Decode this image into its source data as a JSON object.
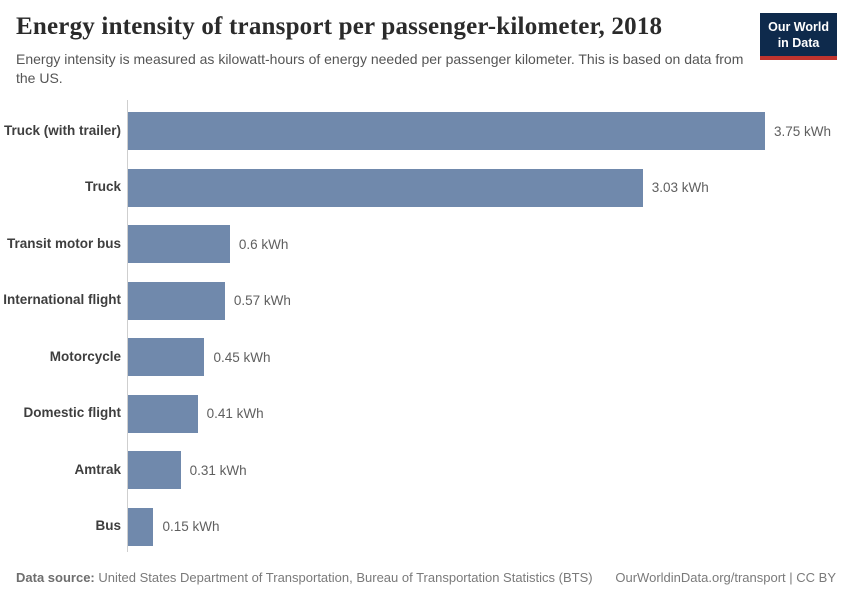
{
  "header": {
    "title": "Energy intensity of transport per passenger-kilometer, 2018",
    "subtitle": "Energy intensity is measured as kilowatt-hours of energy needed per passenger kilometer. This is based on data from the US.",
    "logo": {
      "line1": "Our World",
      "line2": "in Data"
    }
  },
  "chart_data": {
    "type": "bar",
    "orientation": "horizontal",
    "title": "Energy intensity of transport per passenger-kilometer, 2018",
    "subtitle": "Energy intensity is measured as kilowatt-hours of energy needed per passenger kilometer. This is based on data from the US.",
    "unit": "kWh",
    "categories": [
      "Truck (with trailer)",
      "Truck",
      "Transit motor bus",
      "International flight",
      "Motorcycle",
      "Domestic flight",
      "Amtrak",
      "Bus"
    ],
    "values": [
      3.75,
      3.03,
      0.6,
      0.57,
      0.45,
      0.41,
      0.31,
      0.15
    ],
    "value_labels": [
      "3.75 kWh",
      "3.03 kWh",
      "0.6 kWh",
      "0.57 kWh",
      "0.45 kWh",
      "0.41 kWh",
      "0.31 kWh",
      "0.15 kWh"
    ],
    "xlim": [
      0,
      3.75
    ],
    "grid": false,
    "legend": "none",
    "bar_color": "#7089ac"
  },
  "footer": {
    "datasource_label": "Data source:",
    "datasource_text": "United States Department of Transportation, Bureau of Transportation Statistics (BTS)",
    "right_text": "OurWorldinData.org/transport | CC BY"
  },
  "colors": {
    "bar": "#7089ac",
    "logo_bg": "#0e2a4c",
    "logo_accent": "#c0342e",
    "axis": "#cfcfcf"
  }
}
